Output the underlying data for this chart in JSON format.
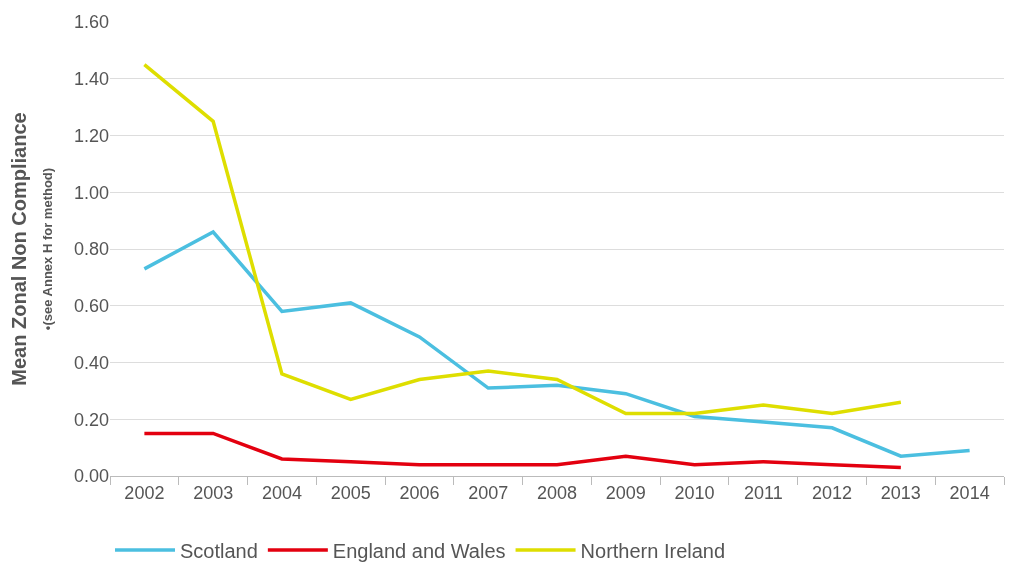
{
  "chart_data": {
    "type": "line",
    "ylabel": "Mean Zonal Non Compliance\n•(see Annex H for method)",
    "categories": [
      "2002",
      "2003",
      "2004",
      "2005",
      "2006",
      "2007",
      "2008",
      "2009",
      "2010",
      "2011",
      "2012",
      "2013",
      "2014"
    ],
    "series": [
      {
        "name": "Scotland",
        "color": "#4bbfe0",
        "values": [
          0.73,
          0.86,
          0.58,
          0.61,
          0.49,
          0.31,
          0.32,
          0.29,
          0.21,
          0.19,
          0.17,
          0.07,
          0.09
        ]
      },
      {
        "name": "England and Wales",
        "color": "#e3000f",
        "values": [
          0.15,
          0.15,
          0.06,
          0.05,
          0.04,
          0.04,
          0.04,
          0.07,
          0.04,
          0.05,
          0.04,
          0.03,
          null
        ]
      },
      {
        "name": "Northern Ireland",
        "color": "#dede00",
        "values": [
          1.45,
          1.25,
          0.36,
          0.27,
          0.34,
          0.37,
          0.34,
          0.22,
          0.22,
          0.25,
          0.22,
          0.26,
          null
        ]
      }
    ],
    "ylim": [
      0,
      1.6
    ],
    "yticks": [
      {
        "value": 0,
        "label": "0.00"
      },
      {
        "value": 0.2,
        "label": "0.20"
      },
      {
        "value": 0.4,
        "label": "0.40"
      },
      {
        "value": 0.6,
        "label": "0.60"
      },
      {
        "value": 0.8,
        "label": "0.80"
      },
      {
        "value": 1.0,
        "label": "1.00"
      },
      {
        "value": 1.2,
        "label": "1.20"
      },
      {
        "value": 1.4,
        "label": "1.40"
      },
      {
        "value": 1.6,
        "label": "1.60"
      }
    ],
    "grid": "y",
    "legend": "bottom",
    "marker": "none",
    "line_style": "solid"
  }
}
